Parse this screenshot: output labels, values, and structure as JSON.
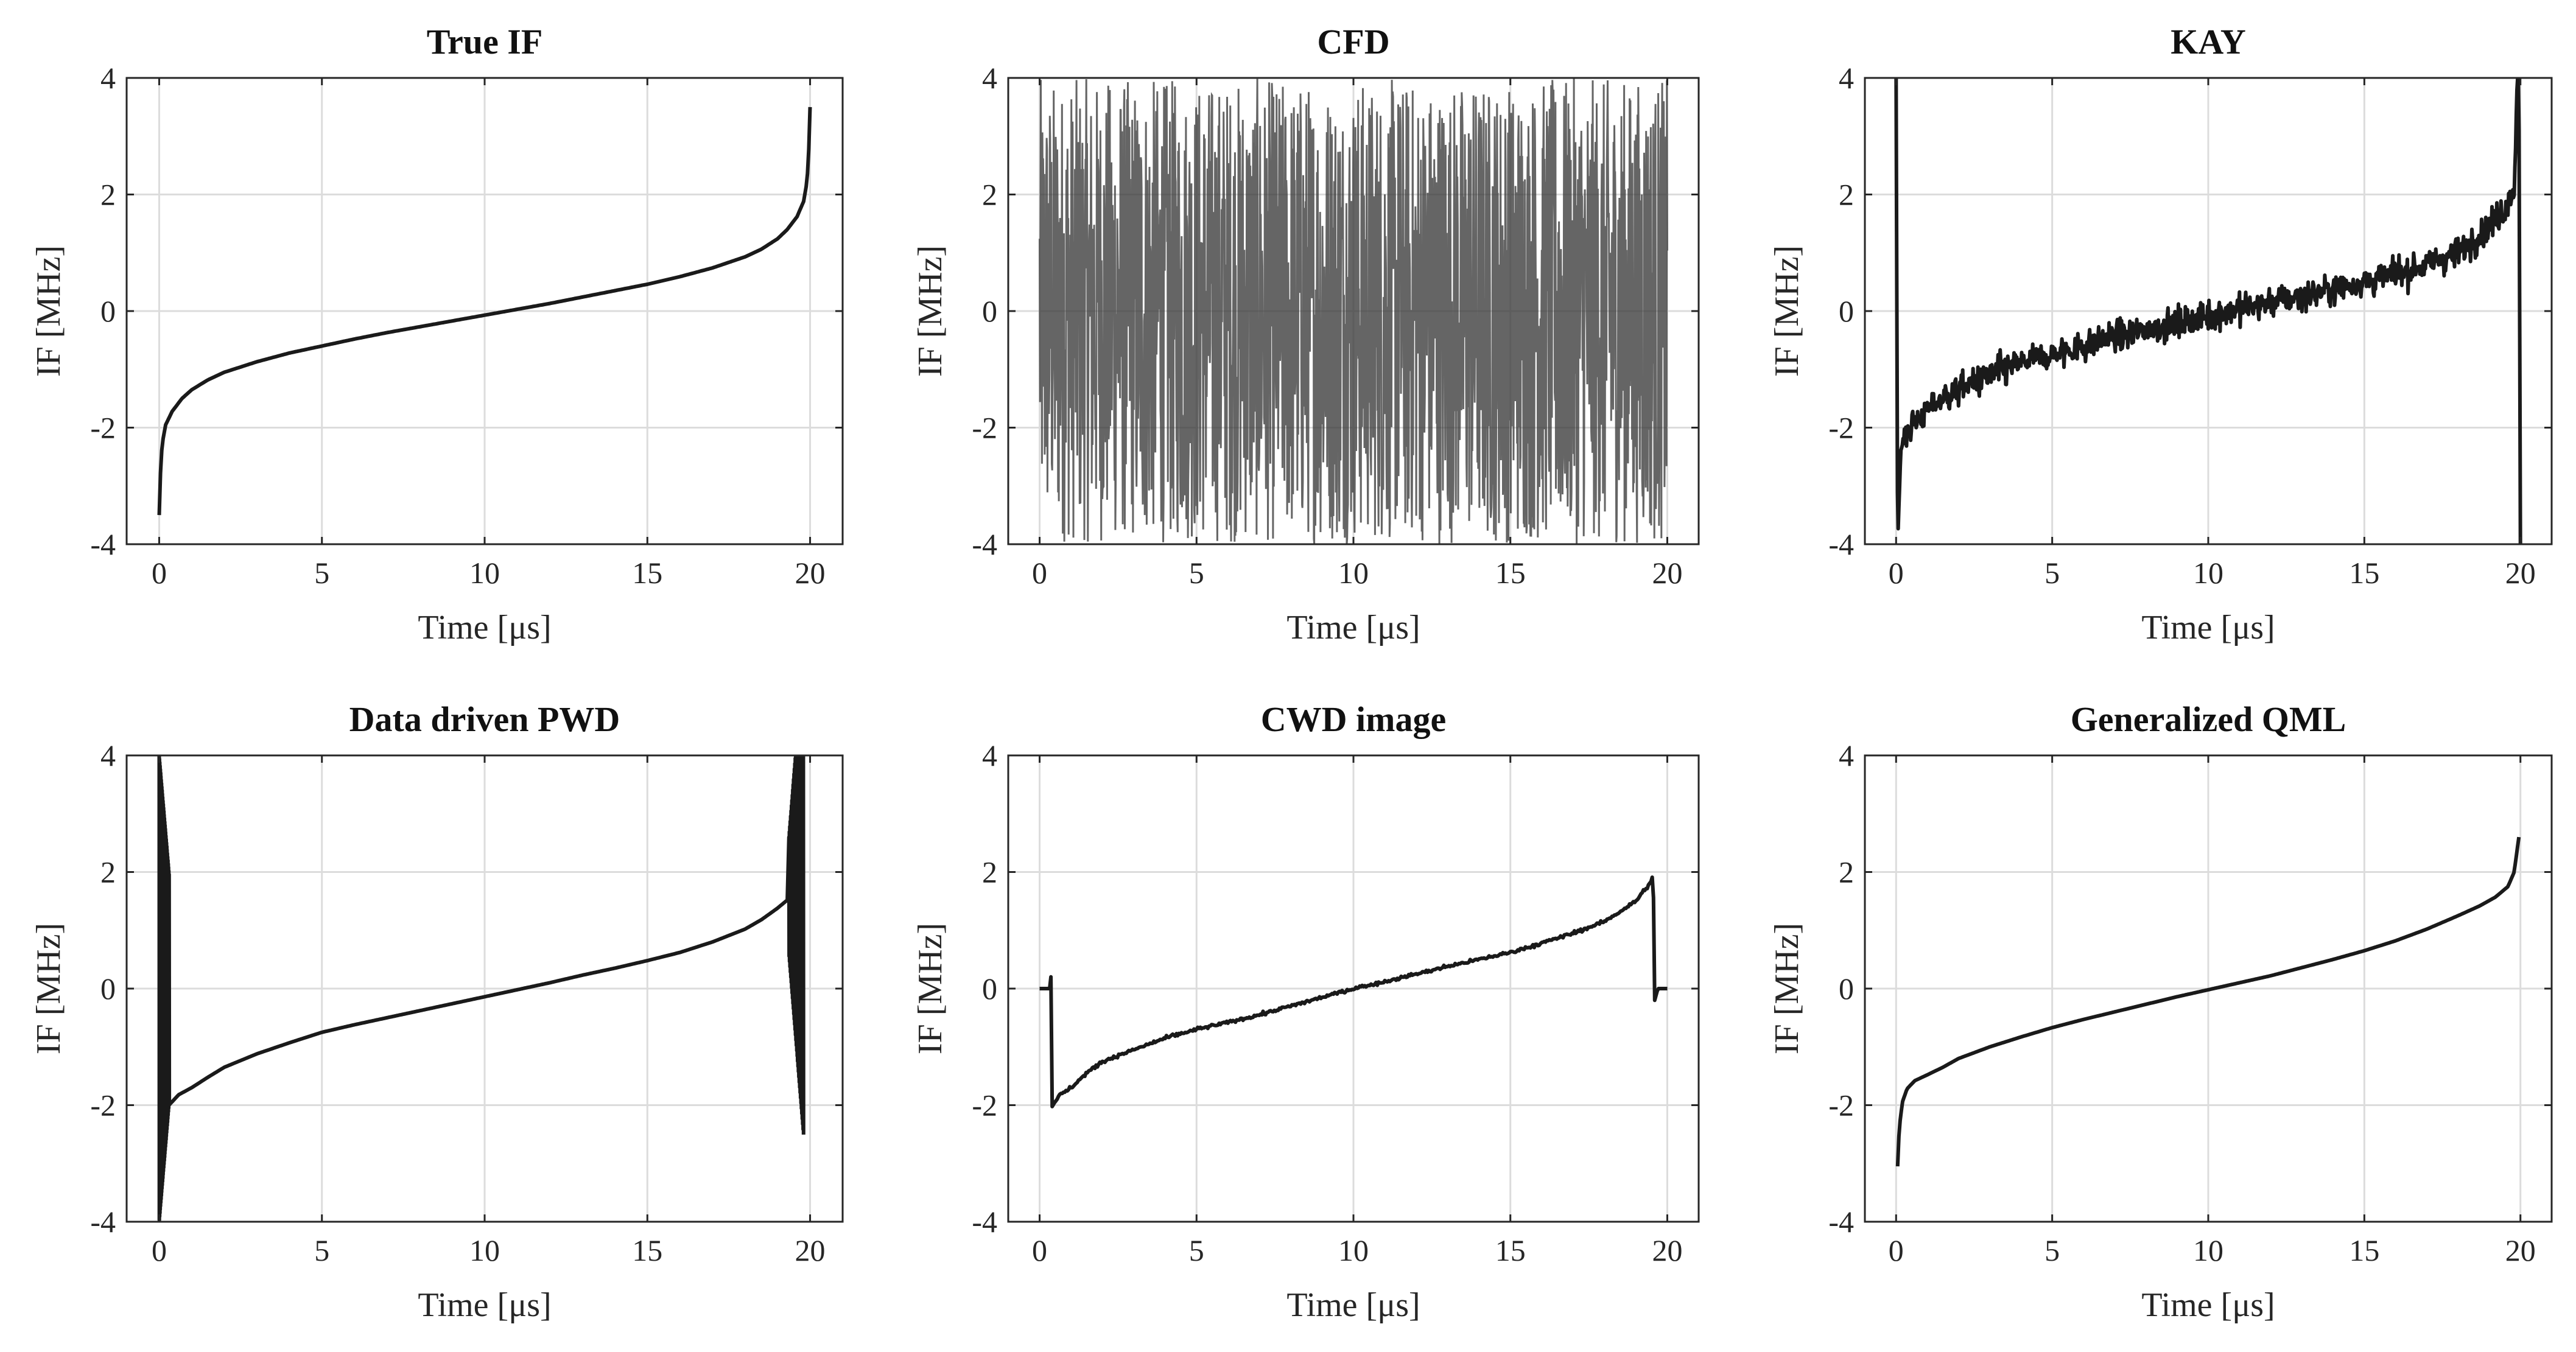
{
  "chart_data": [
    {
      "type": "line",
      "id": "true-if",
      "title": "True IF",
      "xlabel": "Time [μs]",
      "ylabel": "IF [MHz]",
      "xlim": [
        -1,
        21
      ],
      "ylim": [
        -4,
        4
      ],
      "xticks": [
        0,
        5,
        10,
        15,
        20
      ],
      "yticks": [
        -4,
        -2,
        0,
        2,
        4
      ],
      "xtick_labels": [
        "0",
        "5",
        "10",
        "15",
        "20"
      ],
      "ytick_labels": [
        "-4",
        "-2",
        "0",
        "2",
        "4"
      ],
      "grid": true,
      "series": [
        {
          "name": "True IF",
          "color": "#1a1a1a",
          "x": [
            0,
            0.05,
            0.1,
            0.2,
            0.4,
            0.7,
            1,
            1.5,
            2,
            3,
            4,
            5,
            6,
            7,
            8,
            9,
            10,
            11,
            12,
            13,
            14,
            15,
            16,
            17,
            18,
            18.5,
            19,
            19.3,
            19.6,
            19.8,
            19.9,
            19.95,
            20
          ],
          "y": [
            -3.5,
            -2.6,
            -2.25,
            -1.95,
            -1.72,
            -1.5,
            -1.35,
            -1.18,
            -1.05,
            -0.87,
            -0.72,
            -0.6,
            -0.48,
            -0.37,
            -0.27,
            -0.17,
            -0.07,
            0.03,
            0.13,
            0.24,
            0.35,
            0.46,
            0.59,
            0.74,
            0.93,
            1.06,
            1.24,
            1.4,
            1.62,
            1.88,
            2.2,
            2.6,
            3.5
          ]
        }
      ]
    },
    {
      "type": "line",
      "id": "cfd",
      "title": "CFD",
      "xlabel": "Time [μs]",
      "ylabel": "IF [MHz]",
      "xlim": [
        -1,
        21
      ],
      "ylim": [
        -4,
        4
      ],
      "xticks": [
        0,
        5,
        10,
        15,
        20
      ],
      "yticks": [
        -4,
        -2,
        0,
        2,
        4
      ],
      "xtick_labels": [
        "0",
        "5",
        "10",
        "15",
        "20"
      ],
      "ytick_labels": [
        "-4",
        "-2",
        "0",
        "2",
        "4"
      ],
      "grid": true,
      "series": [
        {
          "name": "CFD",
          "color": "#3a3a3a",
          "noise": "full-range",
          "x": [
            0,
            20
          ],
          "y": [
            -4,
            4
          ]
        }
      ]
    },
    {
      "type": "line",
      "id": "kay",
      "title": "KAY",
      "xlabel": "Time [μs]",
      "ylabel": "IF [MHz]",
      "xlim": [
        -1,
        21
      ],
      "ylim": [
        -4,
        4
      ],
      "xticks": [
        0,
        5,
        10,
        15,
        20
      ],
      "yticks": [
        -4,
        -2,
        0,
        2,
        4
      ],
      "xtick_labels": [
        "0",
        "5",
        "10",
        "15",
        "20"
      ],
      "ytick_labels": [
        "-4",
        "-2",
        "0",
        "2",
        "4"
      ],
      "grid": true,
      "series": [
        {
          "name": "KAY",
          "color": "#1a1a1a",
          "noise": "moderate",
          "x": [
            0,
            0.05,
            0.1,
            0.15,
            0.3,
            0.6,
            1,
            1.5,
            2,
            3,
            4,
            5,
            6,
            7,
            8,
            9,
            10,
            11,
            12,
            13,
            14,
            15,
            16,
            17,
            18,
            19,
            19.5,
            19.8,
            19.9,
            19.95,
            20
          ],
          "y": [
            4,
            -4,
            -3.2,
            -2.4,
            -2.1,
            -1.9,
            -1.7,
            -1.5,
            -1.35,
            -1.1,
            -0.9,
            -0.75,
            -0.6,
            -0.45,
            -0.32,
            -0.2,
            -0.08,
            0.04,
            0.15,
            0.27,
            0.38,
            0.5,
            0.63,
            0.8,
            1.0,
            1.45,
            1.75,
            2.1,
            4,
            4,
            -4
          ]
        }
      ]
    },
    {
      "type": "line",
      "id": "data-driven-pwd",
      "title": "Data driven PWD",
      "xlabel": "Time [μs]",
      "ylabel": "IF [MHz]",
      "xlim": [
        -1,
        21
      ],
      "ylim": [
        -4,
        4
      ],
      "xticks": [
        0,
        5,
        10,
        15,
        20
      ],
      "yticks": [
        -4,
        -2,
        0,
        2,
        4
      ],
      "xtick_labels": [
        "0",
        "5",
        "10",
        "15",
        "20"
      ],
      "ytick_labels": [
        "-4",
        "-2",
        "0",
        "2",
        "4"
      ],
      "grid": true,
      "series": [
        {
          "name": "Data driven PWD",
          "color": "#1a1a1a",
          "edge_oscillation": true,
          "x": [
            0.3,
            0.6,
            1,
            1.5,
            2,
            3,
            4,
            5,
            6,
            7,
            8,
            9,
            10,
            11,
            12,
            13,
            14,
            15,
            16,
            17,
            18,
            18.5,
            19,
            19.3
          ],
          "y": [
            -2.0,
            -1.82,
            -1.7,
            -1.52,
            -1.35,
            -1.12,
            -0.93,
            -0.75,
            -0.62,
            -0.5,
            -0.38,
            -0.26,
            -0.14,
            -0.02,
            0.1,
            0.23,
            0.35,
            0.48,
            0.62,
            0.8,
            1.02,
            1.18,
            1.38,
            1.52
          ]
        }
      ]
    },
    {
      "type": "line",
      "id": "cwd-image",
      "title": "CWD image",
      "xlabel": "Time [μs]",
      "ylabel": "IF [MHz]",
      "xlim": [
        -1,
        21
      ],
      "ylim": [
        -4,
        4
      ],
      "xticks": [
        0,
        5,
        10,
        15,
        20
      ],
      "yticks": [
        -4,
        -2,
        0,
        2,
        4
      ],
      "xtick_labels": [
        "0",
        "5",
        "10",
        "15",
        "20"
      ],
      "ytick_labels": [
        "-4",
        "-2",
        "0",
        "2",
        "4"
      ],
      "grid": true,
      "series": [
        {
          "name": "CWD image",
          "color": "#1a1a1a",
          "noise": "small",
          "x": [
            0,
            0.35,
            0.36,
            0.37,
            0.6,
            1,
            1.5,
            2,
            3,
            4,
            5,
            6,
            7,
            8,
            9,
            10,
            11,
            12,
            13,
            14,
            15,
            16,
            17,
            18,
            19,
            19.5,
            19.55,
            19.6,
            19.7,
            20
          ],
          "y": [
            0,
            0,
            0.2,
            -2.05,
            -1.85,
            -1.7,
            -1.45,
            -1.25,
            -1.05,
            -0.85,
            -0.7,
            -0.58,
            -0.45,
            -0.3,
            -0.15,
            0,
            0.12,
            0.25,
            0.38,
            0.5,
            0.62,
            0.78,
            0.95,
            1.15,
            1.5,
            1.85,
            2.0,
            -0.2,
            0,
            0
          ]
        }
      ]
    },
    {
      "type": "line",
      "id": "generalized-qml",
      "title": "Generalized QML",
      "xlabel": "Time [μs]",
      "ylabel": "IF [MHz]",
      "xlim": [
        -1,
        21
      ],
      "ylim": [
        -4,
        4
      ],
      "xticks": [
        0,
        5,
        10,
        15,
        20
      ],
      "yticks": [
        -4,
        -2,
        0,
        2,
        4
      ],
      "xtick_labels": [
        "0",
        "5",
        "10",
        "15",
        "20"
      ],
      "ytick_labels": [
        "-4",
        "-2",
        "0",
        "2",
        "4"
      ],
      "grid": true,
      "series": [
        {
          "name": "Generalized QML",
          "color": "#1a1a1a",
          "x": [
            0.05,
            0.1,
            0.2,
            0.35,
            0.6,
            1,
            1.5,
            2,
            3,
            4,
            5,
            6,
            7,
            8,
            9,
            10,
            11,
            12,
            13,
            14,
            15,
            16,
            17,
            18,
            18.7,
            19.2,
            19.6,
            19.8,
            19.95
          ],
          "y": [
            -3.05,
            -2.4,
            -1.95,
            -1.72,
            -1.58,
            -1.48,
            -1.35,
            -1.2,
            -1.0,
            -0.83,
            -0.67,
            -0.53,
            -0.4,
            -0.27,
            -0.14,
            -0.02,
            0.1,
            0.22,
            0.36,
            0.5,
            0.65,
            0.82,
            1.02,
            1.25,
            1.42,
            1.57,
            1.75,
            2.0,
            2.6
          ]
        }
      ]
    }
  ]
}
